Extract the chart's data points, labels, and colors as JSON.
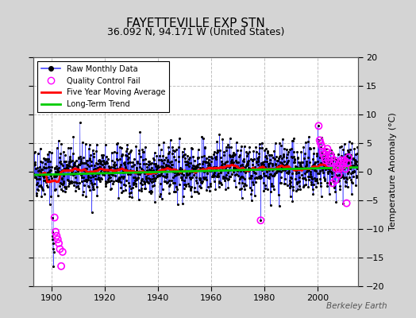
{
  "title": "FAYETTEVILLE EXP STN",
  "subtitle": "36.092 N, 94.171 W (United States)",
  "ylabel": "Temperature Anomaly (°C)",
  "watermark": "Berkeley Earth",
  "xlim": [
    1893,
    2015
  ],
  "ylim": [
    -20,
    20
  ],
  "yticks": [
    -20,
    -15,
    -10,
    -5,
    0,
    5,
    10,
    15,
    20
  ],
  "xticks": [
    1900,
    1920,
    1940,
    1960,
    1980,
    2000
  ],
  "background_color": "#d4d4d4",
  "plot_bg_color": "#ffffff",
  "grid_color": "#c0c0c0",
  "raw_line_color": "#4444ff",
  "raw_dot_color": "#000000",
  "qc_fail_color": "#ff00ff",
  "moving_avg_color": "#ff0000",
  "trend_color": "#00cc00",
  "seed": 42,
  "n_points": 1452,
  "year_start": 1893.0,
  "year_end": 2014.92,
  "anomaly_std": 2.2,
  "moving_avg_window": 60,
  "qc_early_x": [
    1901.0,
    1901.4,
    1901.8,
    1902.2,
    1902.6,
    1903.0,
    1903.5,
    1904.0
  ],
  "qc_early_y": [
    -8.0,
    -10.5,
    -11.2,
    -11.8,
    -12.5,
    -13.5,
    -16.5,
    -14.0
  ],
  "qc_mid_x": [
    1978.5
  ],
  "qc_mid_y": [
    -8.5
  ],
  "qc_late_x": [
    2000.3,
    2000.7,
    2001.0,
    2001.4,
    2001.8,
    2002.1,
    2002.5,
    2002.9,
    2003.2,
    2003.6,
    2004.0,
    2004.4,
    2004.8,
    2005.1,
    2005.5,
    2005.9,
    2006.2,
    2006.6,
    2007.0,
    2007.4,
    2007.8,
    2008.1,
    2008.5,
    2008.9,
    2009.2,
    2009.6,
    2010.0,
    2010.4,
    2010.8,
    2011.1,
    2011.5
  ],
  "qc_late_y": [
    8.0,
    5.5,
    5.0,
    4.5,
    3.5,
    3.0,
    2.5,
    2.0,
    3.5,
    4.0,
    2.0,
    1.5,
    3.0,
    2.5,
    -2.0,
    1.5,
    2.0,
    -1.5,
    0.5,
    1.0,
    -0.5,
    0.5,
    1.5,
    2.0,
    1.0,
    1.5,
    2.0,
    0.5,
    -5.5,
    1.5,
    2.5
  ],
  "legend_loc": "upper left"
}
